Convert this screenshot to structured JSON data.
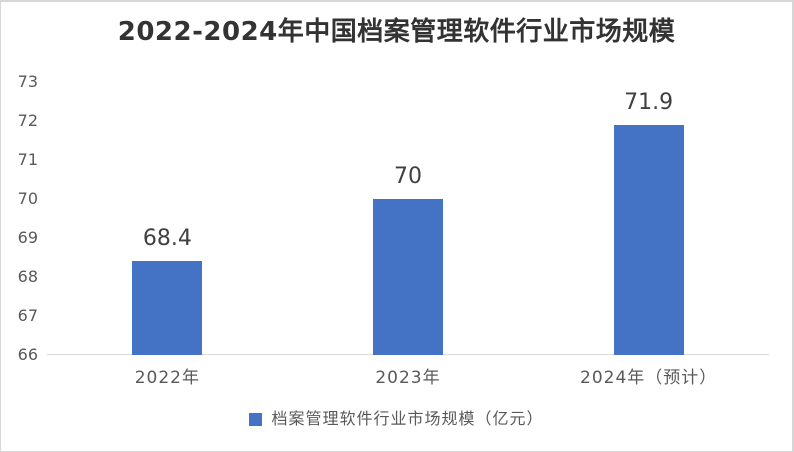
{
  "chart_data": {
    "type": "bar",
    "title": "2022-2024年中国档案管理软件行业市场规模",
    "categories": [
      "2022年",
      "2023年",
      "2024年（预计）"
    ],
    "series": [
      {
        "name": "档案管理软件行业市场规模（亿元）",
        "values": [
          68.4,
          70,
          71.9
        ],
        "color": "#4472C4"
      }
    ],
    "value_labels": [
      "68.4",
      "70",
      "71.9"
    ],
    "xlabel": "",
    "ylabel": "",
    "ylim": [
      66,
      73
    ],
    "ytick_step": 1,
    "yticks": [
      73,
      72,
      71,
      70,
      69,
      68,
      67,
      66
    ],
    "grid": false,
    "legend_position": "bottom",
    "colors": {
      "bar": "#4472C4",
      "title_text": "#333333",
      "axis_text": "#595959",
      "data_label_text": "#404040",
      "axis_line": "#D9D9D9",
      "card_border": "#D6D6D6",
      "background": "#FFFFFF"
    }
  }
}
